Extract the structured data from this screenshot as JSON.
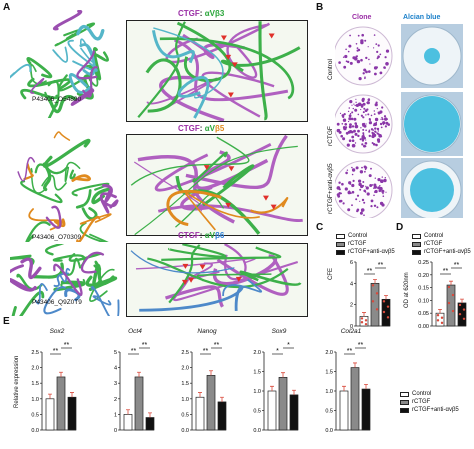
{
  "panels": {
    "A": "A",
    "B": "B",
    "C": "C",
    "D": "D",
    "E": "E"
  },
  "structures": [
    {
      "id": "P43406_O54890",
      "ctgf": "CTGF",
      "colon": ":",
      "alpha": "αV",
      "beta": "β3"
    },
    {
      "id": "P43406_O70309",
      "ctgf": "CTGF",
      "colon": ":",
      "alpha": "αV",
      "beta": "β5"
    },
    {
      "id": "P43406_Q9Z0T9",
      "ctgf": "CTGF",
      "colon": ":",
      "alpha": "αV",
      "beta": "β6"
    }
  ],
  "panel_b": {
    "col_clone": "Clone",
    "col_alcian": "Alcian blue",
    "rows": [
      "Control",
      "rCTGF",
      "rCTGF+anti-αvβ5"
    ]
  },
  "legend_items": [
    "Control",
    "rCTGF",
    "rCTGF+anti-αvβ5"
  ],
  "colors": {
    "control": "#ffffff",
    "rctgf": "#8a8a8a",
    "anti": "#111111",
    "dots": "#d94a3c",
    "purple": "#9b2fa6",
    "green": "#2aa63a",
    "orange": "#e08a1e",
    "blue": "#2d7fd6"
  },
  "chart_data": [
    {
      "type": "bar",
      "panel": "C",
      "categories": [
        "Control",
        "rCTGF",
        "rCTGF+anti-αvβ5"
      ],
      "values": [
        0.9,
        4.0,
        2.5
      ],
      "ylabel": "CFE",
      "yticks": [
        "0",
        "2",
        "4",
        "6"
      ],
      "ylim": [
        0,
        6
      ],
      "significance": [
        "**",
        "**"
      ]
    },
    {
      "type": "bar",
      "panel": "D",
      "categories": [
        "Control",
        "rCTGF",
        "rCTGF+anti-αvβ5"
      ],
      "values": [
        0.05,
        0.16,
        0.09
      ],
      "ylabel": "OD at 620nm",
      "yticks": [
        "0.00",
        "0.05",
        "0.10",
        "0.15",
        "0.20",
        "0.25"
      ],
      "ylim": [
        0,
        0.25
      ],
      "significance": [
        "**",
        "**"
      ]
    },
    {
      "type": "bar",
      "panel": "E",
      "gene": "Sox2",
      "categories": [
        "Control",
        "rCTGF",
        "rCTGF+anti-αvβ5"
      ],
      "values": [
        1.0,
        1.7,
        1.05
      ],
      "ylabel": "Relative expression",
      "yticks": [
        "0.0",
        "0.5",
        "1.0",
        "1.5",
        "2.0",
        "2.5"
      ],
      "ylim": [
        0,
        2.5
      ],
      "significance": [
        "**",
        "**"
      ]
    },
    {
      "type": "bar",
      "panel": "E",
      "gene": "Oct4",
      "categories": [
        "Control",
        "rCTGF",
        "rCTGF+anti-αvβ5"
      ],
      "values": [
        1.0,
        3.4,
        0.8
      ],
      "yticks": [
        "0",
        "1",
        "2",
        "3",
        "4",
        "5"
      ],
      "ylim": [
        0,
        5
      ],
      "significance": [
        "**",
        "**"
      ]
    },
    {
      "type": "bar",
      "panel": "E",
      "gene": "Nanog",
      "categories": [
        "Control",
        "rCTGF",
        "rCTGF+anti-αvβ5"
      ],
      "values": [
        1.05,
        1.75,
        0.9
      ],
      "yticks": [
        "0.0",
        "0.5",
        "1.0",
        "1.5",
        "2.0",
        "2.5"
      ],
      "ylim": [
        0,
        2.5
      ],
      "significance": [
        "**",
        "**"
      ]
    },
    {
      "type": "bar",
      "panel": "E",
      "gene": "Sox9",
      "categories": [
        "Control",
        "rCTGF",
        "rCTGF+anti-αvβ5"
      ],
      "values": [
        1.0,
        1.35,
        0.9
      ],
      "yticks": [
        "0.0",
        "0.5",
        "1.0",
        "1.5",
        "2.0"
      ],
      "ylim": [
        0,
        2.0
      ],
      "significance": [
        "*",
        "*"
      ]
    },
    {
      "type": "bar",
      "panel": "E",
      "gene": "Col2a1",
      "categories": [
        "Control",
        "rCTGF",
        "rCTGF+anti-αvβ5"
      ],
      "values": [
        1.0,
        1.6,
        1.05
      ],
      "yticks": [
        "0.0",
        "0.5",
        "1.0",
        "1.5",
        "2.0"
      ],
      "ylim": [
        0,
        2.0
      ],
      "significance": [
        "**",
        "**"
      ]
    }
  ]
}
